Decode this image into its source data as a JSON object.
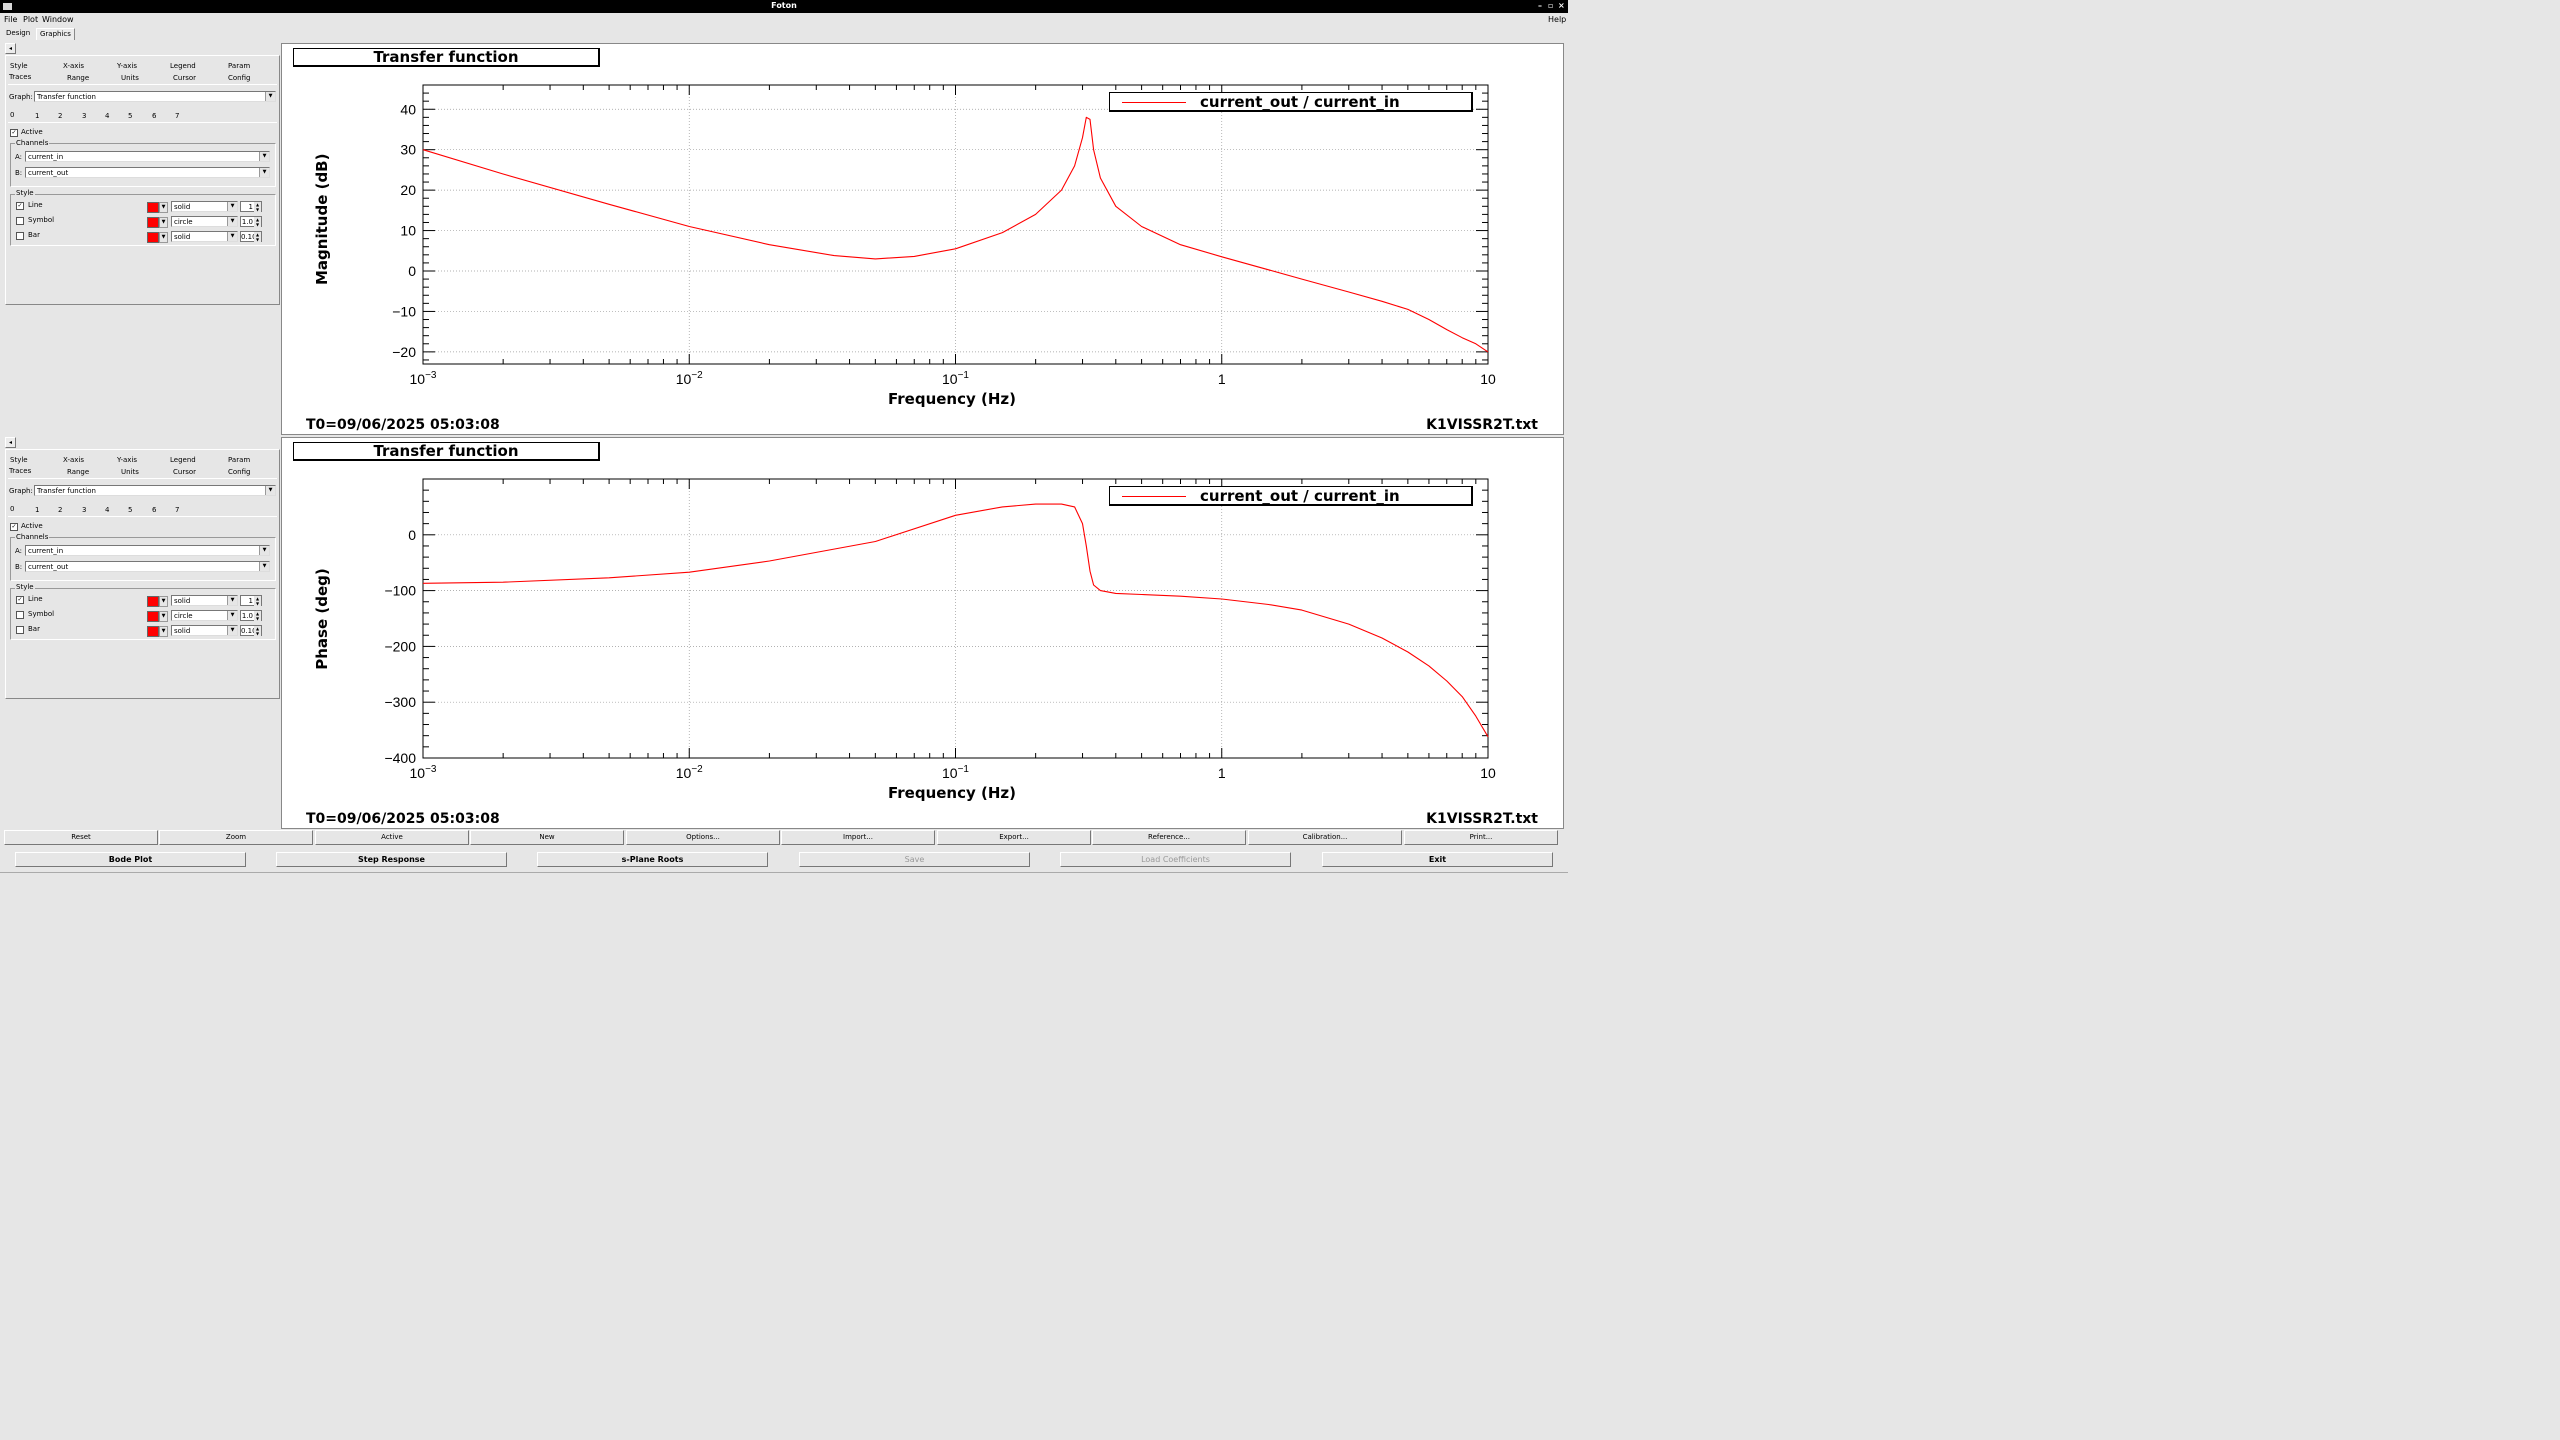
{
  "window": {
    "title": "Foton"
  },
  "menu": {
    "file": "File",
    "plot": "Plot",
    "window": "Window",
    "help": "Help"
  },
  "tabs": {
    "design": "Design",
    "graphics": "Graphics"
  },
  "panel": {
    "tabs_row1": [
      "Style",
      "X-axis",
      "Y-axis",
      "Legend",
      "Param"
    ],
    "tabs_row2": [
      "Traces",
      "Range",
      "Units",
      "Cursor",
      "Config"
    ],
    "graph_label": "Graph:",
    "graph_value": "Transfer function",
    "trace_tabs": [
      "0",
      "1",
      "2",
      "3",
      "4",
      "5",
      "6",
      "7"
    ],
    "active_label": "Active",
    "channels_label": "Channels",
    "a_label": "A:",
    "a_value": "current_in",
    "b_label": "B:",
    "b_value": "current_out",
    "style_label": "Style",
    "line_label": "Line",
    "line_style": "solid",
    "line_width": "1",
    "symbol_label": "Symbol",
    "symbol_style": "circle",
    "symbol_size": "1.0",
    "bar_label": "Bar",
    "bar_style": "solid",
    "bar_width": "0.10",
    "trace_color": "#ff0000"
  },
  "plots": [
    {
      "title": "Transfer function",
      "t0": "T0=09/06/2025 05:03:08",
      "filename": "K1VISSR2T.txt",
      "legend": "current_out / current_in"
    },
    {
      "title": "Transfer function",
      "t0": "T0=09/06/2025 05:03:08",
      "filename": "K1VISSR2T.txt",
      "legend": "current_out / current_in"
    }
  ],
  "buttons_row1": [
    "Reset",
    "Zoom",
    "Active",
    "New",
    "Options...",
    "Import...",
    "Export...",
    "Reference...",
    "Calibration...",
    "Print..."
  ],
  "buttons_row2": [
    "Bode Plot",
    "Step Response",
    "s-Plane Roots",
    "Save",
    "Load Coefficients",
    "Exit"
  ],
  "chart_data": [
    {
      "type": "line",
      "title": "Transfer function",
      "xlabel": "Frequency (Hz)",
      "ylabel": "Magnitude (dB)",
      "xscale": "log",
      "xlim": [
        0.001,
        10
      ],
      "ylim": [
        -23,
        46
      ],
      "x_ticks": [
        "10^-3",
        "10^-2",
        "10^-1",
        "1",
        "10"
      ],
      "y_ticks": [
        40,
        30,
        20,
        10,
        0,
        -10,
        -20
      ],
      "y_tick_labels": [
        "40",
        "30",
        "20",
        "10",
        "0",
        "−10",
        "−20"
      ],
      "grid": true,
      "legend_position": "top-right",
      "series": [
        {
          "name": "current_out / current_in",
          "color": "#ff0000",
          "x": [
            0.001,
            0.002,
            0.005,
            0.01,
            0.02,
            0.035,
            0.05,
            0.07,
            0.1,
            0.15,
            0.2,
            0.25,
            0.28,
            0.3,
            0.31,
            0.32,
            0.33,
            0.35,
            0.4,
            0.5,
            0.7,
            1,
            2,
            3,
            4,
            5,
            6,
            7,
            8,
            9,
            10
          ],
          "y": [
            30,
            24,
            16.5,
            11,
            6.5,
            3.8,
            3,
            3.6,
            5.5,
            9.5,
            14,
            20,
            26,
            33,
            38,
            37.5,
            30,
            23,
            16,
            11,
            6.5,
            3.5,
            -2,
            -5.2,
            -7.5,
            -9.5,
            -12,
            -14.5,
            -16.5,
            -18,
            -20
          ]
        }
      ]
    },
    {
      "type": "line",
      "title": "Transfer function",
      "xlabel": "Frequency (Hz)",
      "ylabel": "Phase (deg)",
      "xscale": "log",
      "xlim": [
        0.001,
        10
      ],
      "ylim": [
        -400,
        100
      ],
      "x_ticks": [
        "10^-3",
        "10^-2",
        "10^-1",
        "1",
        "10"
      ],
      "y_ticks": [
        0,
        -100,
        -200,
        -300,
        -400
      ],
      "y_tick_labels": [
        "0",
        "−100",
        "−200",
        "−300",
        "−400"
      ],
      "grid": true,
      "legend_position": "top-right",
      "series": [
        {
          "name": "current_out / current_in",
          "color": "#ff0000",
          "x": [
            0.001,
            0.002,
            0.005,
            0.01,
            0.02,
            0.05,
            0.1,
            0.15,
            0.2,
            0.25,
            0.28,
            0.3,
            0.31,
            0.32,
            0.33,
            0.35,
            0.4,
            0.5,
            0.7,
            1,
            1.5,
            2,
            3,
            4,
            5,
            6,
            7,
            8,
            9,
            10
          ],
          "y": [
            -87,
            -85,
            -77,
            -67,
            -47,
            -12,
            35,
            50,
            55,
            55,
            50,
            20,
            -20,
            -65,
            -90,
            -100,
            -105,
            -107,
            -110,
            -115,
            -125,
            -135,
            -160,
            -185,
            -210,
            -235,
            -262,
            -290,
            -325,
            -362
          ]
        }
      ]
    }
  ]
}
